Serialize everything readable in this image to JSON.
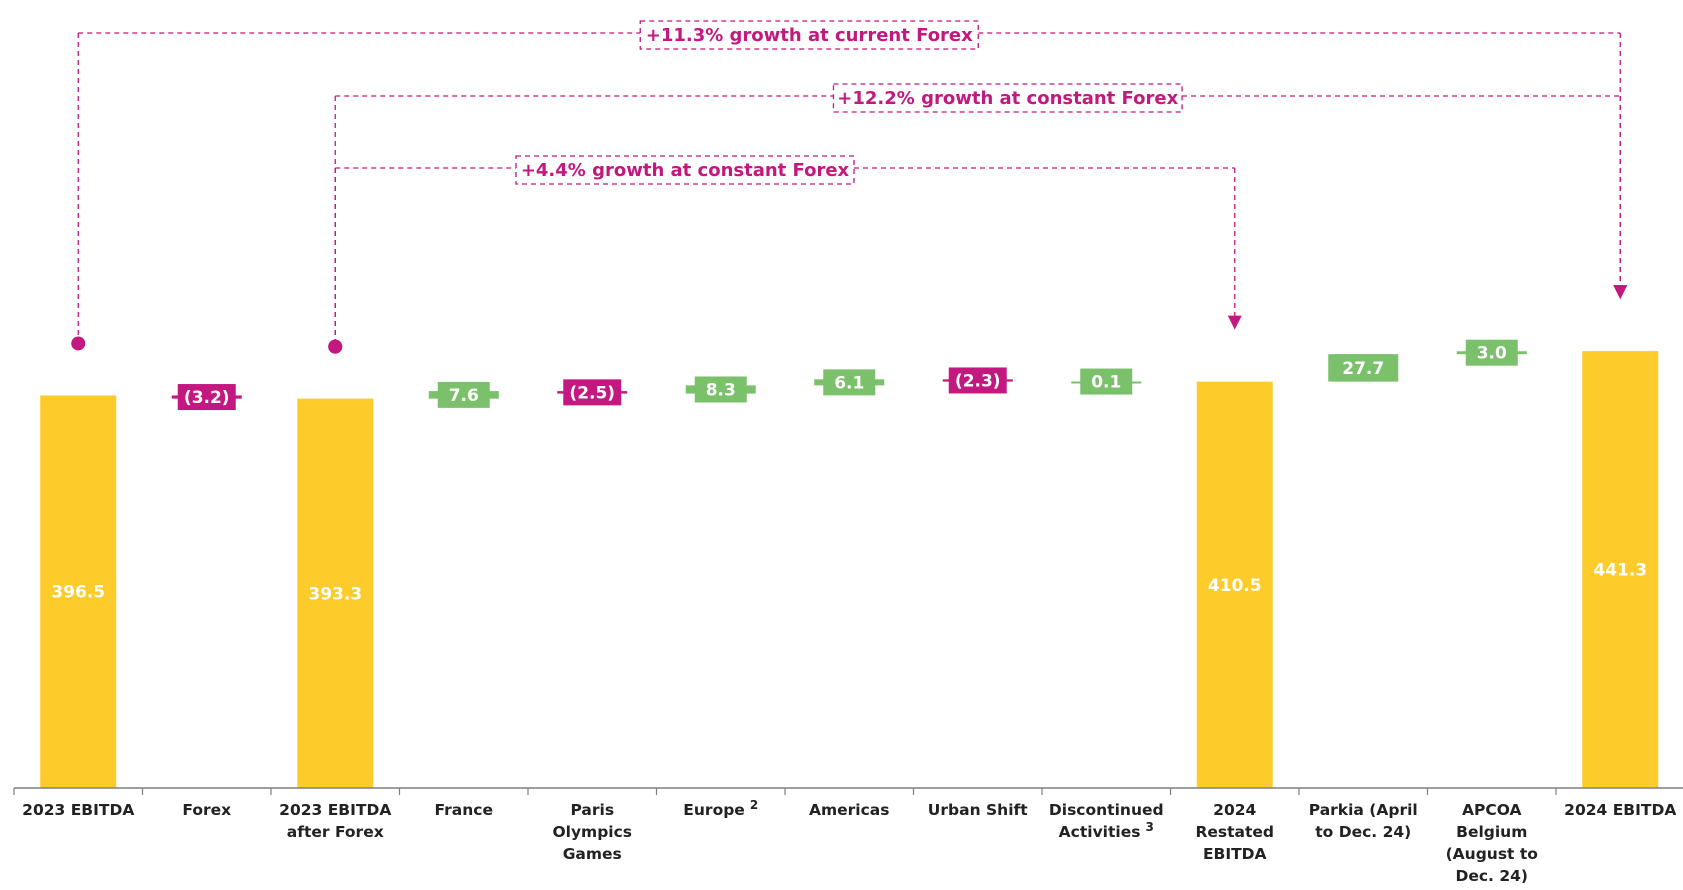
{
  "chart_data": {
    "type": "waterfall",
    "unit_hint": "EBITDA",
    "items": [
      {
        "label_lines": [
          "2023 EBITDA"
        ],
        "kind": "total",
        "value": 396.5,
        "display": "396.5",
        "footnote": ""
      },
      {
        "label_lines": [
          "Forex"
        ],
        "kind": "delta",
        "value": -3.2,
        "display": "(3.2)",
        "footnote": ""
      },
      {
        "label_lines": [
          "2023 EBITDA",
          "after Forex"
        ],
        "kind": "total",
        "value": 393.3,
        "display": "393.3",
        "footnote": ""
      },
      {
        "label_lines": [
          "France"
        ],
        "kind": "delta",
        "value": 7.6,
        "display": "7.6",
        "footnote": ""
      },
      {
        "label_lines": [
          "Paris",
          "Olympics",
          "Games"
        ],
        "kind": "delta",
        "value": -2.5,
        "display": "(2.5)",
        "footnote": ""
      },
      {
        "label_lines": [
          "Europe"
        ],
        "kind": "delta",
        "value": 8.3,
        "display": "8.3",
        "footnote": "2"
      },
      {
        "label_lines": [
          "Americas"
        ],
        "kind": "delta",
        "value": 6.1,
        "display": "6.1",
        "footnote": ""
      },
      {
        "label_lines": [
          "Urban Shift"
        ],
        "kind": "delta",
        "value": -2.3,
        "display": "(2.3)",
        "footnote": ""
      },
      {
        "label_lines": [
          "Discontinued",
          "Activities"
        ],
        "kind": "delta",
        "value": 0.1,
        "display": "0.1",
        "footnote": "3"
      },
      {
        "label_lines": [
          "2024",
          "Restated",
          "EBITDA"
        ],
        "kind": "total",
        "value": 410.5,
        "display": "410.5",
        "footnote": ""
      },
      {
        "label_lines": [
          "Parkia (April",
          "to Dec. 24)"
        ],
        "kind": "delta",
        "value": 27.7,
        "display": "27.7",
        "footnote": ""
      },
      {
        "label_lines": [
          "APCOA",
          "Belgium",
          "(August to",
          "Dec. 24)"
        ],
        "kind": "delta",
        "value": 3.0,
        "display": "3.0",
        "footnote": ""
      },
      {
        "label_lines": [
          "2024 EBITDA"
        ],
        "kind": "total",
        "value": 441.3,
        "display": "441.3",
        "footnote": ""
      }
    ],
    "callouts": [
      {
        "text": "+11.3% growth at current Forex",
        "from_index": 0,
        "to_index": 12
      },
      {
        "text": "+12.2% growth at constant Forex",
        "from_index": 2,
        "to_index": 12
      },
      {
        "text": "+4.4% growth at constant Forex",
        "from_index": 2,
        "to_index": 9
      }
    ],
    "colors": {
      "total": "#fdcb2a",
      "increase": "#7bc06b",
      "decrease": "#c2187f",
      "callout": "#c2187f",
      "axis": "#7f7f7f"
    }
  }
}
